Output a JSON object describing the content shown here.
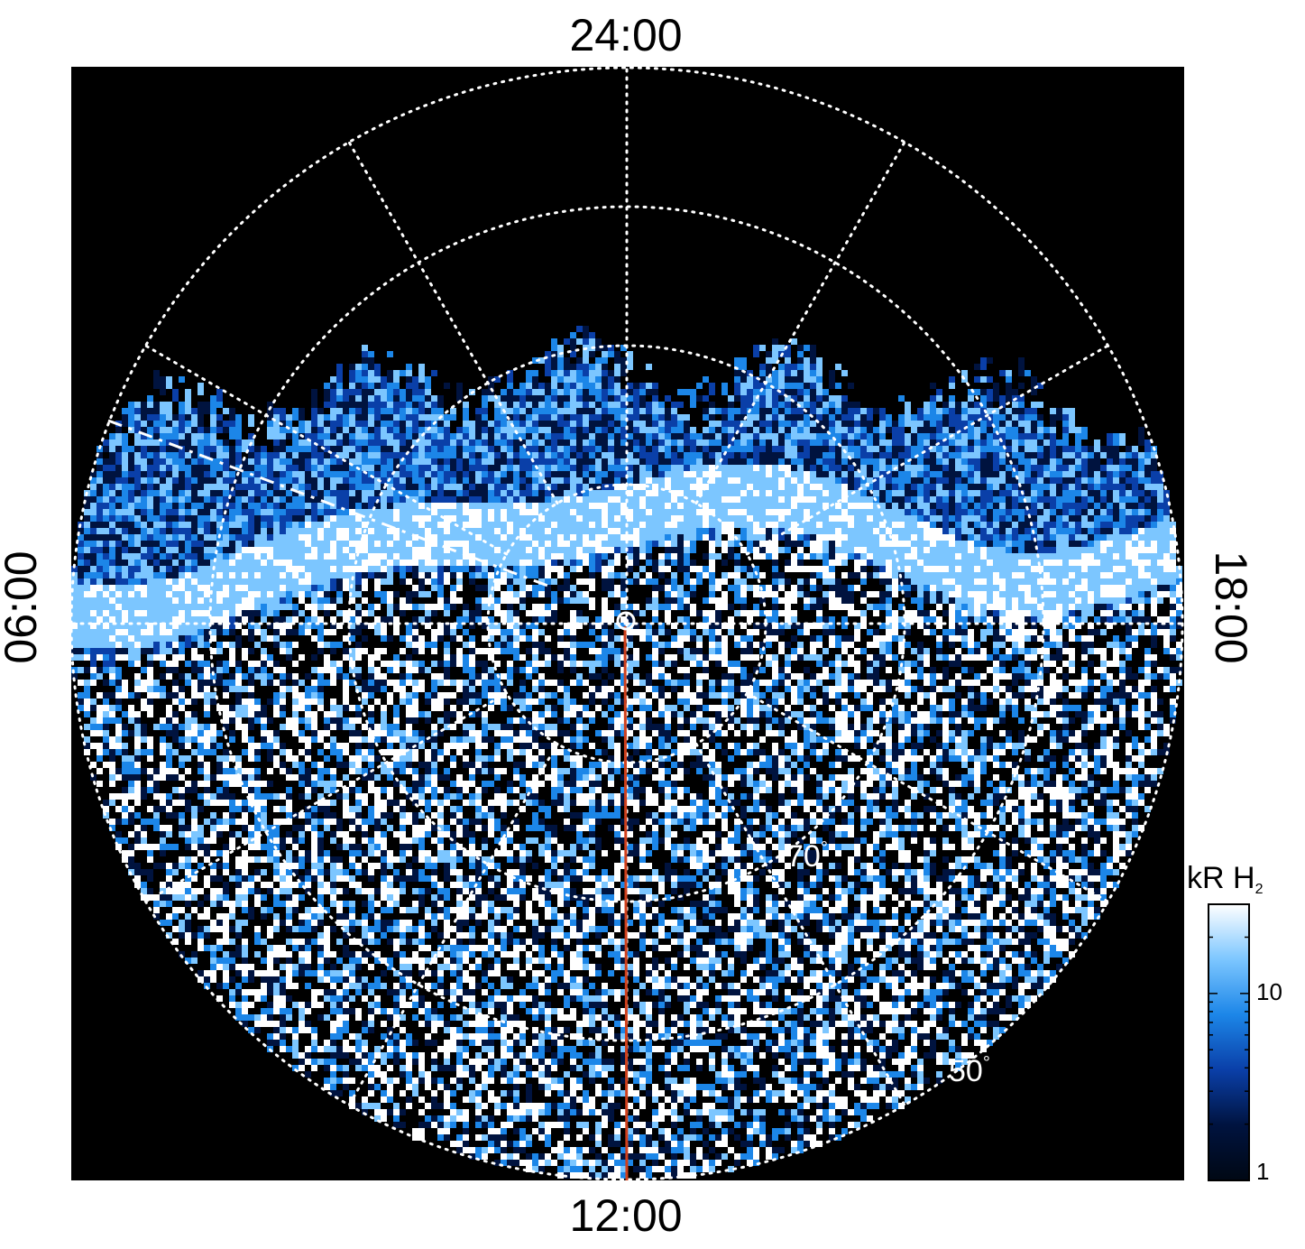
{
  "chart_data": {
    "type": "heatmap",
    "projection": "polar",
    "local_time_labels": {
      "top": "24:00",
      "bottom": "12:00",
      "left": "06:00",
      "right": "18:00"
    },
    "latitude_labels": [
      {
        "text": "70",
        "unit": "°",
        "lat": 70
      },
      {
        "text": "50",
        "unit": "°",
        "lat": 50
      }
    ],
    "latitude_grid": [
      90,
      80,
      70,
      60,
      50
    ],
    "local_time_grid_spacing_hours": 2,
    "grid": true,
    "colorbar": {
      "title": "kR H",
      "title_sub": "2",
      "scale": "log",
      "range": [
        1,
        30
      ],
      "tick_labels": [
        "1",
        "10"
      ],
      "colors": [
        "#000814",
        "#00133f",
        "#0a3fa8",
        "#1c86e8",
        "#7cc6ff",
        "#ffffff"
      ]
    },
    "markers": {
      "pole_marker": "circle",
      "meridian_line_color": "#d0401c",
      "meridian_local_time": "12:00"
    }
  }
}
